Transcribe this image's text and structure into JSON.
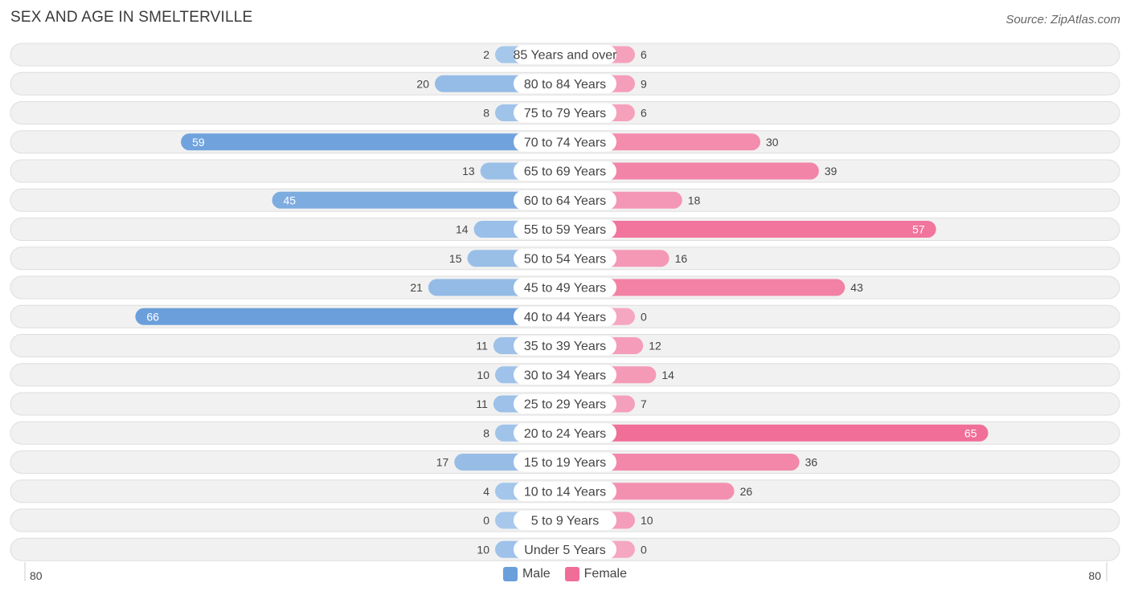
{
  "title": "SEX AND AGE IN SMELTERVILLE",
  "source": "Source: ZipAtlas.com",
  "chart_data": {
    "type": "bar",
    "orientation": "horizontal-butterfly",
    "categories": [
      "85 Years and over",
      "80 to 84 Years",
      "75 to 79 Years",
      "70 to 74 Years",
      "65 to 69 Years",
      "60 to 64 Years",
      "55 to 59 Years",
      "50 to 54 Years",
      "45 to 49 Years",
      "40 to 44 Years",
      "35 to 39 Years",
      "30 to 34 Years",
      "25 to 29 Years",
      "20 to 24 Years",
      "15 to 19 Years",
      "10 to 14 Years",
      "5 to 9 Years",
      "Under 5 Years"
    ],
    "series": [
      {
        "name": "Male",
        "values": [
          2,
          20,
          8,
          59,
          13,
          45,
          14,
          15,
          21,
          66,
          11,
          10,
          11,
          8,
          17,
          4,
          0,
          10
        ]
      },
      {
        "name": "Female",
        "values": [
          6,
          9,
          6,
          30,
          39,
          18,
          57,
          16,
          43,
          0,
          12,
          14,
          7,
          65,
          36,
          26,
          10,
          0
        ]
      }
    ],
    "axis_ticks": {
      "left": "80",
      "right": "80"
    },
    "xlim": [
      -80,
      80
    ],
    "legend_position": "bottom-center",
    "colors": {
      "male_light": "#a7c8eb",
      "male_dark": "#6a9fdb",
      "female_light": "#f5a6c0",
      "female_dark": "#f06d97",
      "row_bg": "#f1f1f1",
      "row_border": "#dedede"
    }
  },
  "legend": {
    "male_label": "Male",
    "female_label": "Female"
  }
}
